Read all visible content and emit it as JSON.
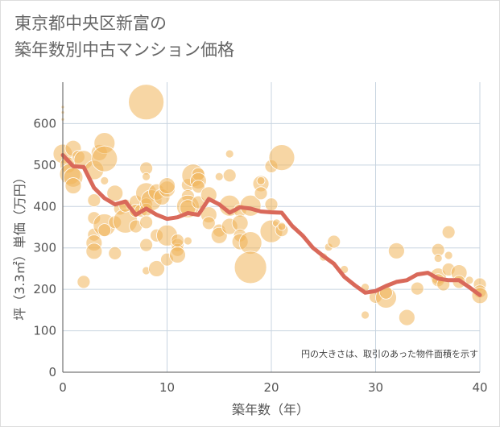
{
  "page": {
    "title": "東京都中央区新富の\n築年数別中古マンション価格"
  },
  "chart_data": {
    "type": "scatter",
    "title": "東京都中央区新富の築年数別中古マンション価格",
    "xlabel": "築年数（年）",
    "ylabel": "坪（3.3㎡）単価（万円）",
    "xlim": [
      0,
      40
    ],
    "ylim": [
      0,
      700
    ],
    "x_ticks": [
      0,
      10,
      20,
      30,
      40
    ],
    "y_ticks": [
      0,
      100,
      200,
      300,
      400,
      500,
      600
    ],
    "grid": true,
    "note": "円の大きさは、取引のあった物件面積を示す",
    "colors": {
      "bubble": "#f0b45a",
      "line": "#d9695a",
      "grid": "#c8d4e0",
      "axis": "#555555"
    },
    "series": [
      {
        "type": "line",
        "points": [
          [
            0,
            524
          ],
          [
            1,
            497
          ],
          [
            2,
            495
          ],
          [
            3,
            445
          ],
          [
            4,
            420
          ],
          [
            5,
            405
          ],
          [
            6,
            412
          ],
          [
            7,
            380
          ],
          [
            8,
            395
          ],
          [
            9,
            380
          ],
          [
            10,
            370
          ],
          [
            11,
            374
          ],
          [
            12,
            384
          ],
          [
            13,
            380
          ],
          [
            14,
            418
          ],
          [
            15,
            405
          ],
          [
            16,
            385
          ],
          [
            17,
            398
          ],
          [
            18,
            395
          ],
          [
            19,
            388
          ],
          [
            20,
            386
          ],
          [
            21,
            385
          ],
          [
            22,
            353
          ],
          [
            23,
            330
          ],
          [
            24,
            300
          ],
          [
            25,
            280
          ],
          [
            26,
            262
          ],
          [
            27,
            230
          ],
          [
            28,
            210
          ],
          [
            29,
            192
          ],
          [
            30,
            196
          ],
          [
            31,
            208
          ],
          [
            32,
            218
          ],
          [
            33,
            222
          ],
          [
            34,
            236
          ],
          [
            35,
            240
          ],
          [
            36,
            226
          ],
          [
            37,
            222
          ],
          [
            38,
            222
          ],
          [
            39,
            205
          ],
          [
            40,
            186
          ]
        ]
      },
      {
        "type": "bubble",
        "points": [
          [
            0,
            640,
            2
          ],
          [
            0,
            627,
            2
          ],
          [
            0,
            610,
            2
          ],
          [
            0,
            527,
            12
          ],
          [
            0.5,
            500,
            10
          ],
          [
            0.7,
            478,
            13
          ],
          [
            1,
            540,
            10
          ],
          [
            1,
            470,
            12
          ],
          [
            1,
            450,
            10
          ],
          [
            1.5,
            520,
            8
          ],
          [
            2,
            512,
            12
          ],
          [
            2,
            218,
            8
          ],
          [
            3,
            488,
            12
          ],
          [
            3,
            415,
            8
          ],
          [
            3,
            372,
            8
          ],
          [
            3,
            332,
            8
          ],
          [
            3,
            312,
            10
          ],
          [
            3,
            292,
            10
          ],
          [
            3.5,
            530,
            10
          ],
          [
            4,
            553,
            13
          ],
          [
            4,
            515,
            16
          ],
          [
            4,
            355,
            14
          ],
          [
            4,
            343,
            8
          ],
          [
            4,
            462,
            5
          ],
          [
            5,
            432,
            10
          ],
          [
            5,
            362,
            8
          ],
          [
            5,
            287,
            8
          ],
          [
            5.5,
            395,
            8
          ],
          [
            6,
            365,
            15
          ],
          [
            6,
            402,
            8
          ],
          [
            7,
            412,
            8
          ],
          [
            7,
            390,
            8
          ],
          [
            7,
            352,
            8
          ],
          [
            7.5,
            390,
            8
          ],
          [
            8,
            652,
            22
          ],
          [
            8,
            492,
            8
          ],
          [
            8,
            472,
            5
          ],
          [
            8,
            432,
            13
          ],
          [
            8,
            405,
            8
          ],
          [
            8,
            392,
            8
          ],
          [
            8,
            362,
            8
          ],
          [
            8,
            307,
            8
          ],
          [
            8,
            245,
            5
          ],
          [
            8.5,
            415,
            13
          ],
          [
            9,
            435,
            10
          ],
          [
            9,
            330,
            8
          ],
          [
            9,
            250,
            10
          ],
          [
            9.5,
            423,
            10
          ],
          [
            10,
            442,
            10
          ],
          [
            10,
            450,
            10
          ],
          [
            10,
            330,
            13
          ],
          [
            10,
            272,
            8
          ],
          [
            11,
            307,
            8
          ],
          [
            11,
            295,
            8
          ],
          [
            11,
            318,
            8
          ],
          [
            11,
            283,
            10
          ],
          [
            12,
            452,
            8
          ],
          [
            12,
            425,
            8
          ],
          [
            12,
            400,
            14
          ],
          [
            12,
            317,
            5
          ],
          [
            12,
            397,
            10
          ],
          [
            12.5,
            475,
            14
          ],
          [
            13,
            478,
            8
          ],
          [
            13,
            462,
            10
          ],
          [
            13,
            448,
            8
          ],
          [
            13,
            410,
            8
          ],
          [
            14,
            428,
            10
          ],
          [
            14,
            380,
            10
          ],
          [
            14,
            360,
            8
          ],
          [
            15,
            472,
            5
          ],
          [
            15,
            342,
            8
          ],
          [
            15,
            330,
            10
          ],
          [
            16,
            475,
            8
          ],
          [
            16,
            527,
            5
          ],
          [
            16,
            402,
            13
          ],
          [
            16,
            352,
            10
          ],
          [
            17,
            390,
            8
          ],
          [
            17,
            360,
            10
          ],
          [
            17,
            330,
            8
          ],
          [
            17,
            315,
            10
          ],
          [
            18,
            402,
            13
          ],
          [
            18,
            312,
            14
          ],
          [
            18,
            253,
            20
          ],
          [
            19,
            455,
            10
          ],
          [
            19,
            462,
            5
          ],
          [
            19,
            432,
            8
          ],
          [
            20,
            497,
            8
          ],
          [
            20,
            405,
            8
          ],
          [
            20,
            340,
            14
          ],
          [
            20.5,
            360,
            5
          ],
          [
            21,
            518,
            16
          ],
          [
            21,
            343,
            8
          ],
          [
            21,
            352,
            5
          ],
          [
            25,
            278,
            5
          ],
          [
            25.5,
            302,
            5
          ],
          [
            26,
            315,
            8
          ],
          [
            27,
            248,
            5
          ],
          [
            29,
            138,
            5
          ],
          [
            29,
            205,
            5
          ],
          [
            30,
            182,
            8
          ],
          [
            31,
            180,
            13
          ],
          [
            31,
            192,
            8
          ],
          [
            32,
            293,
            10
          ],
          [
            33,
            132,
            10
          ],
          [
            34,
            202,
            8
          ],
          [
            36,
            295,
            8
          ],
          [
            36,
            275,
            5
          ],
          [
            36,
            232,
            10
          ],
          [
            36,
            222,
            8
          ],
          [
            36.5,
            212,
            8
          ],
          [
            37,
            338,
            8
          ],
          [
            37,
            282,
            5
          ],
          [
            37,
            248,
            8
          ],
          [
            38,
            240,
            10
          ],
          [
            38,
            218,
            8
          ],
          [
            39,
            222,
            5
          ],
          [
            40,
            212,
            8
          ],
          [
            40,
            195,
            8
          ],
          [
            40,
            185,
            10
          ]
        ]
      }
    ]
  }
}
